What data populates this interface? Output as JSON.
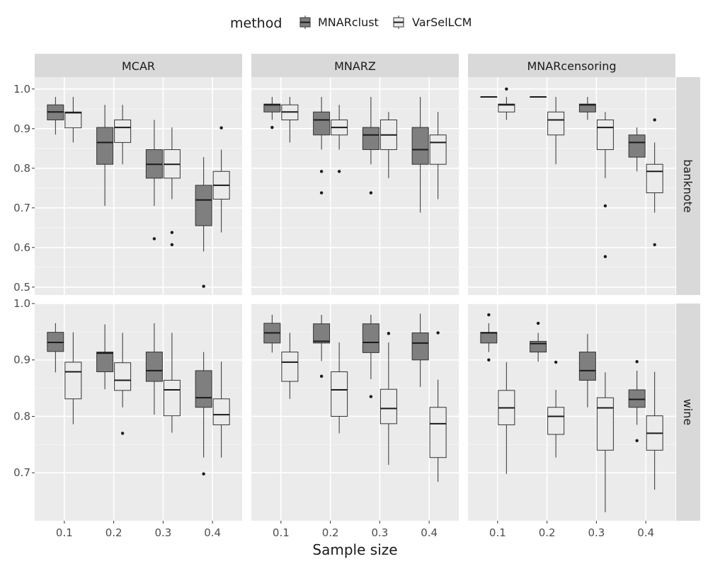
{
  "chart_data": {
    "type": "boxplot",
    "xlabel": "Sample size",
    "legend": {
      "title": "method",
      "placement": "top",
      "entries": [
        {
          "name": "MNARclust",
          "color": "#7f7f7f"
        },
        {
          "name": "VarSelLCM",
          "color": "#ebebeb"
        }
      ]
    },
    "categories": [
      "0.1",
      "0.2",
      "0.3",
      "0.4"
    ],
    "columns": [
      "MCAR",
      "MNARZ",
      "MNARcensoring"
    ],
    "rows": [
      {
        "name": "banknote",
        "ylim": [
          0.48,
          1.03
        ],
        "ticks": [
          0.5,
          0.6,
          0.7,
          0.8,
          0.9,
          1.0
        ],
        "tick_labels": [
          "0.5",
          "0.6",
          "0.7",
          "0.8",
          "0.9",
          "1.0"
        ]
      },
      {
        "name": "wine",
        "ylim": [
          0.615,
          1.0
        ],
        "ticks": [
          0.7,
          0.8,
          0.9,
          1.0
        ],
        "tick_labels": [
          "0.7",
          "0.8",
          "0.9",
          "1.0"
        ]
      }
    ],
    "panels": [
      {
        "row": 0,
        "col": 0,
        "boxes": [
          {
            "method": "MNARclust",
            "cat": 0,
            "min": 0.885,
            "q1": 0.922,
            "median": 0.942,
            "q3": 0.96,
            "max": 0.98,
            "outliers": []
          },
          {
            "method": "VarSelLCM",
            "cat": 0,
            "min": 0.865,
            "q1": 0.902,
            "median": 0.94,
            "q3": 0.942,
            "max": 0.98,
            "outliers": []
          },
          {
            "method": "MNARclust",
            "cat": 1,
            "min": 0.705,
            "q1": 0.81,
            "median": 0.865,
            "q3": 0.903,
            "max": 0.96,
            "outliers": []
          },
          {
            "method": "VarSelLCM",
            "cat": 1,
            "min": 0.81,
            "q1": 0.865,
            "median": 0.903,
            "q3": 0.922,
            "max": 0.96,
            "outliers": []
          },
          {
            "method": "MNARclust",
            "cat": 2,
            "min": 0.705,
            "q1": 0.775,
            "median": 0.81,
            "q3": 0.847,
            "max": 0.922,
            "outliers": [
              0.622
            ]
          },
          {
            "method": "VarSelLCM",
            "cat": 2,
            "min": 0.722,
            "q1": 0.775,
            "median": 0.81,
            "q3": 0.847,
            "max": 0.903,
            "outliers": [
              0.638,
              0.607
            ]
          },
          {
            "method": "MNARclust",
            "cat": 3,
            "min": 0.59,
            "q1": 0.655,
            "median": 0.72,
            "q3": 0.757,
            "max": 0.828,
            "outliers": [
              0.502
            ]
          },
          {
            "method": "VarSelLCM",
            "cat": 3,
            "min": 0.638,
            "q1": 0.722,
            "median": 0.757,
            "q3": 0.792,
            "max": 0.847,
            "outliers": [
              0.902
            ]
          }
        ]
      },
      {
        "row": 0,
        "col": 1,
        "boxes": [
          {
            "method": "MNARclust",
            "cat": 0,
            "min": 0.922,
            "q1": 0.942,
            "median": 0.96,
            "q3": 0.962,
            "max": 0.98,
            "outliers": [
              0.903
            ]
          },
          {
            "method": "VarSelLCM",
            "cat": 0,
            "min": 0.865,
            "q1": 0.922,
            "median": 0.942,
            "q3": 0.96,
            "max": 0.98,
            "outliers": []
          },
          {
            "method": "MNARclust",
            "cat": 1,
            "min": 0.847,
            "q1": 0.884,
            "median": 0.922,
            "q3": 0.942,
            "max": 0.98,
            "outliers": [
              0.792,
              0.738
            ]
          },
          {
            "method": "VarSelLCM",
            "cat": 1,
            "min": 0.847,
            "q1": 0.884,
            "median": 0.903,
            "q3": 0.922,
            "max": 0.96,
            "outliers": [
              0.792
            ]
          },
          {
            "method": "MNARclust",
            "cat": 2,
            "min": 0.81,
            "q1": 0.847,
            "median": 0.884,
            "q3": 0.903,
            "max": 0.98,
            "outliers": [
              0.738
            ]
          },
          {
            "method": "VarSelLCM",
            "cat": 2,
            "min": 0.775,
            "q1": 0.847,
            "median": 0.884,
            "q3": 0.922,
            "max": 0.942,
            "outliers": []
          },
          {
            "method": "MNARclust",
            "cat": 3,
            "min": 0.688,
            "q1": 0.81,
            "median": 0.847,
            "q3": 0.903,
            "max": 0.98,
            "outliers": []
          },
          {
            "method": "VarSelLCM",
            "cat": 3,
            "min": 0.722,
            "q1": 0.81,
            "median": 0.865,
            "q3": 0.884,
            "max": 0.942,
            "outliers": []
          }
        ]
      },
      {
        "row": 0,
        "col": 2,
        "boxes": [
          {
            "method": "MNARclust",
            "cat": 0,
            "min": 0.98,
            "q1": 0.98,
            "median": 0.98,
            "q3": 0.98,
            "max": 0.98,
            "outliers": []
          },
          {
            "method": "VarSelLCM",
            "cat": 0,
            "min": 0.922,
            "q1": 0.942,
            "median": 0.96,
            "q3": 0.962,
            "max": 0.98,
            "outliers": [
              1.0
            ]
          },
          {
            "method": "MNARclust",
            "cat": 1,
            "min": 0.98,
            "q1": 0.98,
            "median": 0.98,
            "q3": 0.98,
            "max": 0.98,
            "outliers": []
          },
          {
            "method": "VarSelLCM",
            "cat": 1,
            "min": 0.81,
            "q1": 0.884,
            "median": 0.922,
            "q3": 0.942,
            "max": 0.98,
            "outliers": []
          },
          {
            "method": "MNARclust",
            "cat": 2,
            "min": 0.922,
            "q1": 0.942,
            "median": 0.96,
            "q3": 0.962,
            "max": 0.98,
            "outliers": []
          },
          {
            "method": "VarSelLCM",
            "cat": 2,
            "min": 0.775,
            "q1": 0.847,
            "median": 0.903,
            "q3": 0.922,
            "max": 0.942,
            "outliers": [
              0.705,
              0.577
            ]
          },
          {
            "method": "MNARclust",
            "cat": 3,
            "min": 0.792,
            "q1": 0.828,
            "median": 0.865,
            "q3": 0.884,
            "max": 0.903,
            "outliers": []
          },
          {
            "method": "VarSelLCM",
            "cat": 3,
            "min": 0.688,
            "q1": 0.738,
            "median": 0.792,
            "q3": 0.81,
            "max": 0.865,
            "outliers": [
              0.922,
              0.607
            ]
          }
        ]
      },
      {
        "row": 1,
        "col": 0,
        "boxes": [
          {
            "method": "MNARclust",
            "cat": 0,
            "min": 0.878,
            "q1": 0.915,
            "median": 0.931,
            "q3": 0.949,
            "max": 0.965,
            "outliers": []
          },
          {
            "method": "VarSelLCM",
            "cat": 0,
            "min": 0.786,
            "q1": 0.831,
            "median": 0.879,
            "q3": 0.896,
            "max": 0.949,
            "outliers": []
          },
          {
            "method": "MNARclust",
            "cat": 1,
            "min": 0.848,
            "q1": 0.879,
            "median": 0.912,
            "q3": 0.914,
            "max": 0.963,
            "outliers": []
          },
          {
            "method": "VarSelLCM",
            "cat": 1,
            "min": 0.816,
            "q1": 0.846,
            "median": 0.864,
            "q3": 0.895,
            "max": 0.948,
            "outliers": [
              0.77
            ]
          },
          {
            "method": "MNARclust",
            "cat": 2,
            "min": 0.803,
            "q1": 0.862,
            "median": 0.881,
            "q3": 0.914,
            "max": 0.965,
            "outliers": []
          },
          {
            "method": "VarSelLCM",
            "cat": 2,
            "min": 0.771,
            "q1": 0.801,
            "median": 0.847,
            "q3": 0.864,
            "max": 0.948,
            "outliers": []
          },
          {
            "method": "MNARclust",
            "cat": 3,
            "min": 0.727,
            "q1": 0.816,
            "median": 0.833,
            "q3": 0.881,
            "max": 0.914,
            "outliers": [
              0.698
            ]
          },
          {
            "method": "VarSelLCM",
            "cat": 3,
            "min": 0.727,
            "q1": 0.785,
            "median": 0.803,
            "q3": 0.831,
            "max": 0.897,
            "outliers": []
          }
        ]
      },
      {
        "row": 1,
        "col": 1,
        "boxes": [
          {
            "method": "MNARclust",
            "cat": 0,
            "min": 0.913,
            "q1": 0.93,
            "median": 0.948,
            "q3": 0.965,
            "max": 0.98,
            "outliers": []
          },
          {
            "method": "VarSelLCM",
            "cat": 0,
            "min": 0.831,
            "q1": 0.862,
            "median": 0.896,
            "q3": 0.914,
            "max": 0.948,
            "outliers": []
          },
          {
            "method": "MNARclust",
            "cat": 1,
            "min": 0.898,
            "q1": 0.93,
            "median": 0.933,
            "q3": 0.964,
            "max": 0.98,
            "outliers": [
              0.871
            ]
          },
          {
            "method": "VarSelLCM",
            "cat": 1,
            "min": 0.77,
            "q1": 0.8,
            "median": 0.847,
            "q3": 0.879,
            "max": 0.931,
            "outliers": []
          },
          {
            "method": "MNARclust",
            "cat": 2,
            "min": 0.866,
            "q1": 0.913,
            "median": 0.931,
            "q3": 0.964,
            "max": 0.98,
            "outliers": [
              0.835
            ]
          },
          {
            "method": "VarSelLCM",
            "cat": 2,
            "min": 0.714,
            "q1": 0.787,
            "median": 0.814,
            "q3": 0.848,
            "max": 0.931,
            "outliers": [
              0.947
            ]
          },
          {
            "method": "MNARclust",
            "cat": 3,
            "min": 0.852,
            "q1": 0.9,
            "median": 0.93,
            "q3": 0.948,
            "max": 0.982,
            "outliers": []
          },
          {
            "method": "VarSelLCM",
            "cat": 3,
            "min": 0.684,
            "q1": 0.727,
            "median": 0.787,
            "q3": 0.816,
            "max": 0.865,
            "outliers": [
              0.948
            ]
          }
        ]
      },
      {
        "row": 1,
        "col": 2,
        "boxes": [
          {
            "method": "MNARclust",
            "cat": 0,
            "min": 0.914,
            "q1": 0.93,
            "median": 0.948,
            "q3": 0.949,
            "max": 0.965,
            "outliers": [
              0.98,
              0.9
            ]
          },
          {
            "method": "VarSelLCM",
            "cat": 0,
            "min": 0.698,
            "q1": 0.785,
            "median": 0.815,
            "q3": 0.846,
            "max": 0.896,
            "outliers": []
          },
          {
            "method": "MNARclust",
            "cat": 1,
            "min": 0.897,
            "q1": 0.914,
            "median": 0.929,
            "q3": 0.933,
            "max": 0.948,
            "outliers": [
              0.965
            ]
          },
          {
            "method": "VarSelLCM",
            "cat": 1,
            "min": 0.727,
            "q1": 0.768,
            "median": 0.8,
            "q3": 0.816,
            "max": 0.847,
            "outliers": [
              0.896
            ]
          },
          {
            "method": "MNARclust",
            "cat": 2,
            "min": 0.816,
            "q1": 0.864,
            "median": 0.881,
            "q3": 0.914,
            "max": 0.946,
            "outliers": []
          },
          {
            "method": "VarSelLCM",
            "cat": 2,
            "min": 0.63,
            "q1": 0.74,
            "median": 0.815,
            "q3": 0.833,
            "max": 0.878,
            "outliers": []
          },
          {
            "method": "MNARclust",
            "cat": 3,
            "min": 0.785,
            "q1": 0.816,
            "median": 0.83,
            "q3": 0.847,
            "max": 0.881,
            "outliers": [
              0.897,
              0.757
            ]
          },
          {
            "method": "VarSelLCM",
            "cat": 3,
            "min": 0.67,
            "q1": 0.74,
            "median": 0.77,
            "q3": 0.801,
            "max": 0.879,
            "outliers": []
          }
        ]
      }
    ]
  }
}
